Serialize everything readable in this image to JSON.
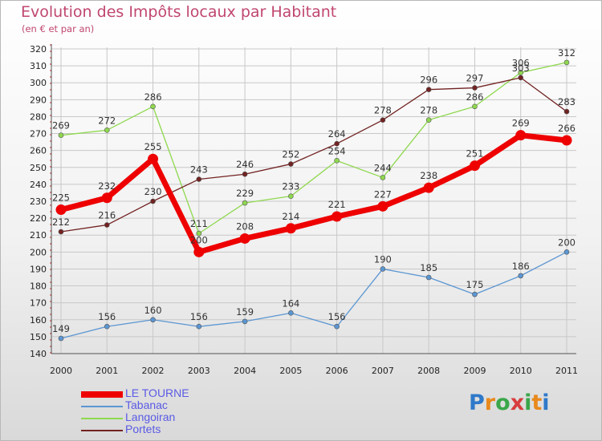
{
  "title": "Evolution des Impôts locaux par Habitant",
  "subtitle": "(en € et par an)",
  "logo": "Proxiti",
  "colors": {
    "title": "#c0476e",
    "grid": "#c8c8c8",
    "LE TOURNE": "#ee0000",
    "Tabanac": "#5b96d2",
    "Langoiran": "#8fd84f",
    "Portets": "#722222"
  },
  "chart_data": {
    "type": "line",
    "title": "Evolution des Impôts locaux par Habitant",
    "subtitle": "(en € et par an)",
    "x": [
      "2000",
      "2001",
      "2002",
      "2003",
      "2004",
      "2005",
      "2006",
      "2007",
      "2008",
      "2009",
      "2010",
      "2011"
    ],
    "ylim": [
      140,
      320
    ],
    "yticks": [
      140,
      150,
      160,
      170,
      180,
      190,
      200,
      210,
      220,
      230,
      240,
      250,
      260,
      270,
      280,
      290,
      300,
      310,
      320
    ],
    "grid": true,
    "legend_position": "bottom-left",
    "series": [
      {
        "name": "LE TOURNE",
        "values": [
          225,
          232,
          255,
          200,
          208,
          214,
          221,
          227,
          238,
          251,
          269,
          266
        ]
      },
      {
        "name": "Tabanac",
        "values": [
          149,
          156,
          160,
          156,
          159,
          164,
          156,
          190,
          185,
          175,
          186,
          200
        ]
      },
      {
        "name": "Langoiran",
        "values": [
          269,
          272,
          286,
          211,
          229,
          233,
          254,
          244,
          278,
          286,
          306,
          312
        ]
      },
      {
        "name": "Portets",
        "values": [
          212,
          216,
          230,
          243,
          246,
          252,
          264,
          278,
          296,
          297,
          303,
          283
        ]
      }
    ]
  }
}
